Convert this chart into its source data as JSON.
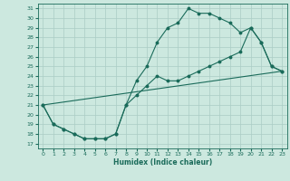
{
  "xlabel": "Humidex (Indice chaleur)",
  "bg_color": "#cce8df",
  "grid_color": "#aaccC4",
  "line_color": "#1a6b5a",
  "xlim": [
    -0.5,
    23.5
  ],
  "ylim": [
    16.5,
    31.5
  ],
  "xticks": [
    0,
    1,
    2,
    3,
    4,
    5,
    6,
    7,
    8,
    9,
    10,
    11,
    12,
    13,
    14,
    15,
    16,
    17,
    18,
    19,
    20,
    21,
    22,
    23
  ],
  "yticks": [
    17,
    18,
    19,
    20,
    21,
    22,
    23,
    24,
    25,
    26,
    27,
    28,
    29,
    30,
    31
  ],
  "curve1_x": [
    0,
    1,
    2,
    3,
    4,
    5,
    6,
    7,
    8,
    9,
    10,
    11,
    12,
    13,
    14,
    15,
    16,
    17,
    18,
    19,
    20,
    21,
    22,
    23
  ],
  "curve1_y": [
    21,
    19,
    18.5,
    18,
    17.5,
    17.5,
    17.5,
    18,
    21,
    23.5,
    25,
    27.5,
    29,
    29.5,
    31,
    30.5,
    30.5,
    30,
    29.5,
    28.5,
    29,
    27.5,
    25,
    24.5
  ],
  "curve2_x": [
    0,
    1,
    2,
    3,
    4,
    5,
    6,
    7,
    8,
    9,
    10,
    11,
    12,
    13,
    14,
    15,
    16,
    17,
    18,
    19,
    20,
    21,
    22,
    23
  ],
  "curve2_y": [
    21,
    19,
    18.5,
    18,
    17.5,
    17.5,
    17.5,
    18,
    21,
    22,
    23,
    24,
    23.5,
    23.5,
    24,
    24.5,
    25,
    25.5,
    26,
    26.5,
    29,
    27.5,
    25,
    24.5
  ],
  "line1_x": [
    0,
    23
  ],
  "line1_y": [
    21,
    24.5
  ]
}
